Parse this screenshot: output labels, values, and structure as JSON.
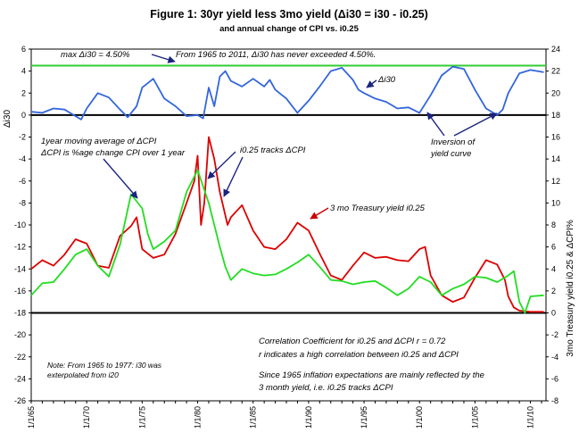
{
  "chart_data": {
    "type": "line",
    "title": "Figure 1:  30yr yield less 3mo yield (Δi30  = i30 - i0.25)",
    "subtitle": "and annual change of CPI vs. i0.25",
    "ylabel_left": "Δi30",
    "ylabel_right": "3mo Treasury yield  i0.25  &  ΔCPI%",
    "ylim_left": [
      -26,
      6
    ],
    "ylim_right": [
      -8,
      24
    ],
    "yticks_left": [
      "6",
      "4",
      "2",
      "0",
      "-2",
      "-4",
      "-6",
      "-8",
      "-10",
      "-12",
      "-14",
      "-16",
      "-18",
      "-20",
      "-22",
      "-24",
      "-26"
    ],
    "yticks_right": [
      "24",
      "22",
      "20",
      "18",
      "16",
      "14",
      "12",
      "10",
      "8",
      "6",
      "4",
      "2",
      "0",
      "-2",
      "-4",
      "-6",
      "-8"
    ],
    "xticks": [
      "1/1/65",
      "1/1/70",
      "1/1/75",
      "1/1/80",
      "1/1/85",
      "1/1/90",
      "1/1/95",
      "1/1/00",
      "1/1/05",
      "1/1/10"
    ],
    "xlim": [
      1965,
      2011.4
    ],
    "grid": false,
    "reference_lines": [
      {
        "axis": "left",
        "value": 4.5,
        "color": "#33cc33"
      },
      {
        "axis": "left",
        "value": 0,
        "color": "#000000"
      },
      {
        "axis": "left",
        "value": -18,
        "color": "#000000"
      }
    ],
    "series": [
      {
        "name": "Δi30",
        "axis": "left",
        "color": "#3366dd",
        "x": [
          1965,
          1966,
          1967,
          1968,
          1969,
          1969.5,
          1970,
          1971,
          1972,
          1973,
          1973.7,
          1974.5,
          1975,
          1975.5,
          1976,
          1977,
          1978,
          1979,
          1980,
          1980.5,
          1981,
          1981.5,
          1982,
          1982.5,
          1983,
          1984,
          1985,
          1986,
          1986.5,
          1987,
          1988,
          1989,
          1990,
          1991,
          1992,
          1993,
          1994,
          1994.5,
          1995,
          1996,
          1997,
          1998,
          1999,
          2000,
          2001,
          2002,
          2003,
          2004,
          2005,
          2006,
          2007,
          2007.5,
          2008,
          2009,
          2010,
          2011.2
        ],
        "y": [
          0.3,
          0.2,
          0.6,
          0.5,
          -0.1,
          -0.4,
          0.6,
          2.0,
          1.6,
          0.5,
          -0.2,
          0.8,
          2.5,
          2.9,
          3.3,
          1.5,
          0.8,
          -0.1,
          0.0,
          -0.3,
          2.5,
          0.8,
          3.5,
          4.0,
          3.1,
          2.6,
          3.3,
          2.6,
          3.2,
          2.3,
          1.5,
          0.2,
          1.3,
          2.6,
          4.0,
          4.3,
          3.2,
          2.3,
          2.0,
          1.5,
          1.2,
          0.6,
          0.7,
          0.2,
          1.8,
          3.6,
          4.4,
          4.2,
          2.3,
          0.6,
          0.0,
          0.5,
          2.0,
          3.8,
          4.1,
          3.9
        ]
      },
      {
        "name": "3mo Treasury yield  i0.25",
        "axis": "right",
        "color": "#dd0000",
        "x": [
          1965,
          1966,
          1967,
          1968,
          1969,
          1970,
          1971,
          1972,
          1973,
          1974,
          1974.5,
          1975,
          1976,
          1977,
          1978,
          1979,
          1979.7,
          1980,
          1980.3,
          1980.6,
          1981,
          1981.5,
          1982,
          1982.7,
          1983,
          1984,
          1985,
          1986,
          1987,
          1988,
          1989,
          1990,
          1991,
          1992,
          1993,
          1994,
          1995,
          1996,
          1997,
          1998,
          1999,
          2000,
          2000.5,
          2001,
          2002,
          2003,
          2004,
          2005,
          2006,
          2007,
          2007.7,
          2008,
          2008.5,
          2009,
          2010,
          2011.2
        ],
        "y": [
          4.0,
          4.8,
          4.3,
          5.3,
          6.7,
          6.3,
          4.3,
          4.1,
          7.0,
          7.9,
          8.7,
          5.8,
          5.0,
          5.3,
          7.2,
          10.0,
          12.0,
          14.3,
          8.0,
          10.0,
          16.0,
          14.0,
          11.0,
          8.0,
          8.7,
          9.8,
          7.5,
          6.0,
          5.8,
          6.7,
          8.2,
          7.5,
          5.4,
          3.4,
          3.0,
          4.3,
          5.5,
          5.0,
          5.1,
          4.8,
          4.7,
          5.8,
          6.0,
          3.4,
          1.6,
          1.0,
          1.4,
          3.2,
          4.8,
          4.4,
          3.0,
          1.5,
          0.5,
          0.2,
          0.1,
          0.1
        ]
      },
      {
        "name": "ΔCPI",
        "axis": "right",
        "color": "#22dd22",
        "x": [
          1965,
          1966,
          1967,
          1968,
          1969,
          1970,
          1971,
          1972,
          1973,
          1974,
          1975,
          1975.5,
          1976,
          1977,
          1978,
          1979,
          1980,
          1980.5,
          1981,
          1982,
          1982.5,
          1983,
          1984,
          1985,
          1986,
          1987,
          1988,
          1989,
          1990,
          1991,
          1992,
          1993,
          1994,
          1995,
          1996,
          1997,
          1998,
          1999,
          2000,
          2001,
          2002,
          2003,
          2004,
          2005,
          2006,
          2007,
          2008,
          2008.5,
          2009,
          2009.5,
          2010,
          2011.2
        ],
        "y": [
          1.6,
          2.7,
          2.8,
          4.0,
          5.3,
          5.8,
          4.3,
          3.3,
          6.2,
          10.8,
          9.5,
          7.2,
          5.8,
          6.5,
          7.5,
          11.0,
          13.0,
          11.5,
          10.0,
          6.0,
          4.2,
          3.0,
          4.0,
          3.6,
          3.4,
          3.5,
          4.0,
          4.6,
          5.3,
          4.2,
          3.0,
          2.9,
          2.6,
          2.8,
          2.9,
          2.3,
          1.6,
          2.2,
          3.3,
          2.8,
          1.6,
          2.2,
          2.6,
          3.3,
          3.2,
          2.8,
          3.4,
          3.8,
          1.0,
          0.0,
          1.5,
          1.6
        ]
      }
    ],
    "annotations": [
      {
        "text": "max Δi30 = 4.50%"
      },
      {
        "text": "From 1965 to 2011,  Δi30 has never exceeded 4.50%."
      },
      {
        "text": "Δi30"
      },
      {
        "text": "Inversion of"
      },
      {
        "text": "yield curve"
      },
      {
        "text": "1year moving average of ΔCPI"
      },
      {
        "text": "ΔCPI is %age change CPI over 1 year"
      },
      {
        "text": "i0.25 tracks ΔCPI"
      },
      {
        "text": "3 mo Treasury yield  i0.25"
      },
      {
        "text": "Correlation Coefficient for i0.25 and ΔCPI   r = 0.72"
      },
      {
        "text": "r indicates a high correlation between i0.25 and ΔCPI"
      },
      {
        "text": "Since 1965 inflation expectations are mainly reflected by the"
      },
      {
        "text": "3 month yield,   i.e.  i0.25 tracks ΔCPI"
      },
      {
        "text": "Note: From 1965 to 1977: i30 was"
      },
      {
        "text": "exterpolated from i20"
      }
    ]
  }
}
